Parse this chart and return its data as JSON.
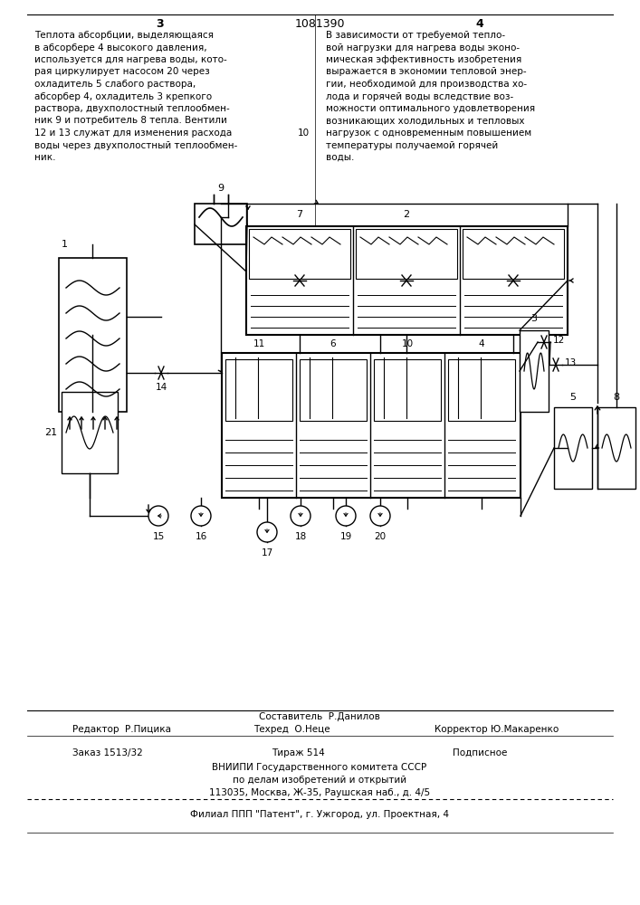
{
  "page_num_left": "3",
  "page_num_center": "1081390",
  "page_num_right": "4",
  "left_text_lines": [
    "Теплота абсорбции, выделяющаяся",
    "в абсорбере 4 высокого давления,",
    "используется для нагрева воды, кото-",
    "рая циркулирует насосом 20 через",
    "охладитель 5 слабого раствора,",
    "абсорбер 4, охладитель 3 крепкого",
    "раствора, двухполостный теплообмен-",
    "ник 9 и потребитель 8 тепла. Вентили",
    "12 и 13 служат для изменения расхода",
    "воды через двухполостный теплообмен-",
    "ник."
  ],
  "right_text_lines": [
    "В зависимости от требуемой тепло-",
    "вой нагрузки для нагрева воды эконо-",
    "мическая эффективность изобретения",
    "выражается в экономии тепловой энер-",
    "гии, необходимой для производства хо-",
    "лода и горячей воды вследствие воз-",
    "можности оптимального удовлетворения",
    "возникающих холодильных и тепловых",
    "нагрузок с одновременным повышением",
    "температуры получаемой горячей",
    "воды."
  ],
  "line_number": "10",
  "footer_sostavitel": "Составитель  Р.Данилов",
  "footer_editor": "Редактор  Р.Пицика",
  "footer_techred": "Техред  О.Неце",
  "footer_corrector": "Корректор Ю.Макаренко",
  "footer_order": "Заказ 1513/32",
  "footer_tirazh": "Тираж 514",
  "footer_podpisnoe": "Подписное",
  "footer_vniipи": "ВНИИПИ Государственного комитета СССР",
  "footer_po_delam": "по делам изобретений и открытий",
  "footer_address": "113035, Москва, Ж-35, Раушская наб., д. 4/5",
  "footer_filial": "Филиал ППП \"Патент\", г. Ужгород, ул. Проектная, 4",
  "bg_color": "#ffffff"
}
